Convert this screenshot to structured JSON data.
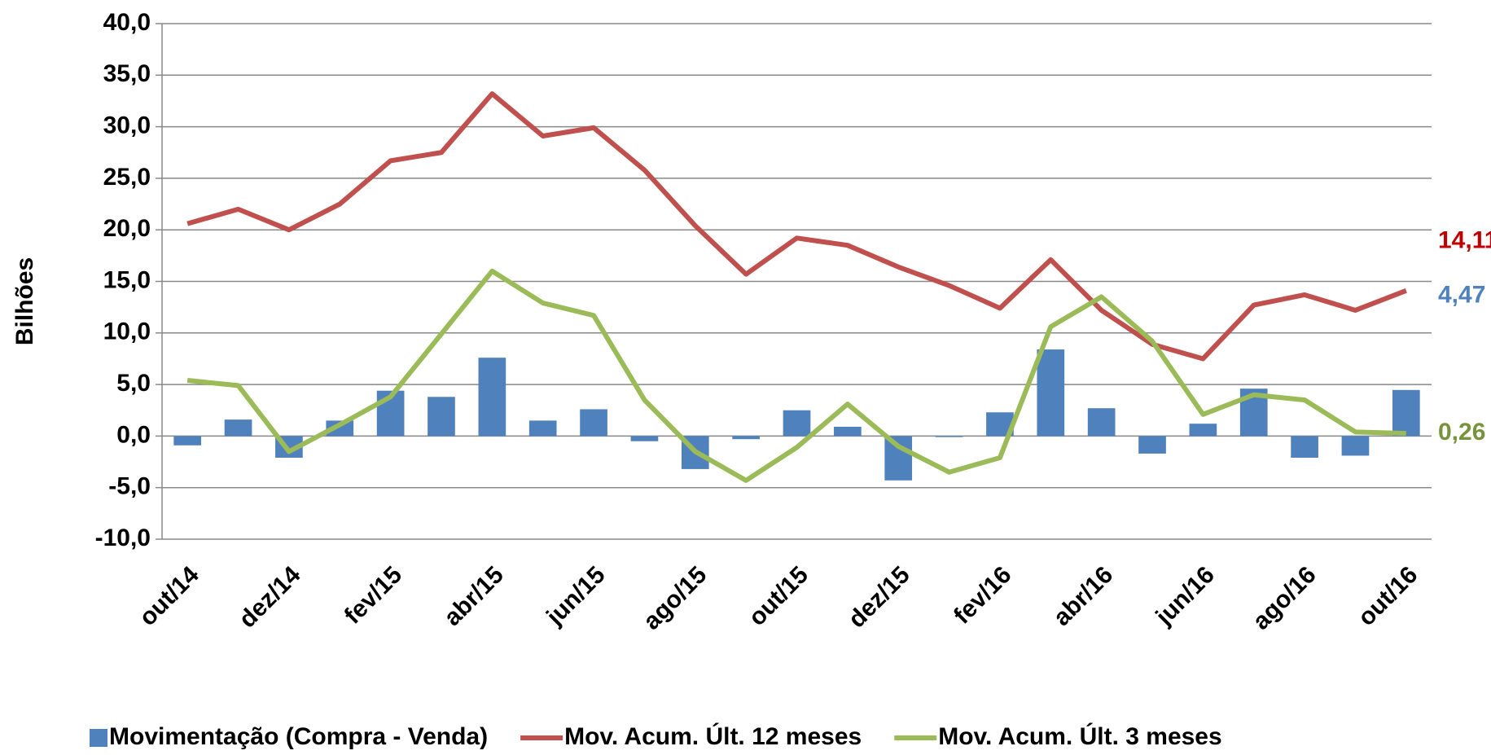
{
  "chart_data": {
    "type": "bar",
    "y_label": "Bilhões",
    "categories": [
      "out/14",
      null,
      "dez/14",
      null,
      "fev/15",
      null,
      "abr/15",
      null,
      "jun/15",
      null,
      "ago/15",
      null,
      "out/15",
      null,
      "dez/15",
      null,
      "fev/16",
      null,
      "abr/16",
      null,
      "jun/16",
      null,
      "ago/16",
      null,
      "out/16"
    ],
    "series": [
      {
        "name": "Movimentação (Compra - Venda)",
        "type": "bar",
        "color": "#4f81bd",
        "label_color": "#4f81bd",
        "values": [
          -0.9,
          1.6,
          -2.1,
          1.5,
          4.4,
          3.8,
          7.6,
          1.5,
          2.6,
          -0.5,
          -3.2,
          -0.3,
          2.5,
          0.9,
          -4.3,
          -0.1,
          2.3,
          8.4,
          2.7,
          -1.7,
          1.2,
          4.6,
          -2.1,
          -1.9,
          4.47
        ],
        "value_labels": [
          null,
          null,
          null,
          null,
          null,
          null,
          null,
          null,
          null,
          null,
          null,
          null,
          null,
          null,
          null,
          null,
          null,
          null,
          null,
          null,
          null,
          null,
          null,
          null,
          "4,47"
        ]
      },
      {
        "name": "Mov. Acum. Últ. 12 meses",
        "type": "line",
        "color": "#c0504d",
        "label_color": "#c00000",
        "values": [
          20.6,
          22.0,
          20.0,
          22.5,
          26.7,
          27.5,
          33.2,
          29.1,
          29.9,
          25.8,
          20.4,
          15.7,
          19.2,
          18.5,
          16.4,
          14.6,
          12.4,
          17.1,
          12.2,
          8.9,
          7.5,
          12.7,
          13.7,
          12.2,
          14.11
        ],
        "value_labels": [
          null,
          null,
          null,
          null,
          null,
          null,
          null,
          null,
          null,
          null,
          null,
          null,
          null,
          null,
          null,
          null,
          null,
          null,
          null,
          null,
          null,
          null,
          null,
          null,
          "14,11"
        ]
      },
      {
        "name": "Mov. Acum. Últ. 3 meses",
        "type": "line",
        "color": "#9bbb59",
        "label_color": "#77933c",
        "values": [
          5.4,
          4.9,
          -1.5,
          1.1,
          3.8,
          9.9,
          16.0,
          12.9,
          11.7,
          3.5,
          -1.5,
          -4.3,
          -1.1,
          3.1,
          -1.0,
          -3.5,
          -2.1,
          10.6,
          13.5,
          9.2,
          2.1,
          4.0,
          3.5,
          0.4,
          0.26
        ],
        "value_labels": [
          null,
          null,
          null,
          null,
          null,
          null,
          null,
          null,
          null,
          null,
          null,
          null,
          null,
          null,
          null,
          null,
          null,
          null,
          null,
          null,
          null,
          null,
          null,
          null,
          "0,26"
        ]
      }
    ],
    "ylim": [
      -10,
      40
    ],
    "yticks": [
      {
        "value": -10,
        "label": "-10,0"
      },
      {
        "value": -5,
        "label": "-5,0"
      },
      {
        "value": 0,
        "label": "0,0"
      },
      {
        "value": 5,
        "label": "5,0"
      },
      {
        "value": 10,
        "label": "10,0"
      },
      {
        "value": 15,
        "label": "15,0"
      },
      {
        "value": 20,
        "label": "20,0"
      },
      {
        "value": 25,
        "label": "25,0"
      },
      {
        "value": 30,
        "label": "30,0"
      },
      {
        "value": 35,
        "label": "35,0"
      },
      {
        "value": 40,
        "label": "40,0"
      }
    ],
    "grid": true,
    "legend": "bottom"
  }
}
